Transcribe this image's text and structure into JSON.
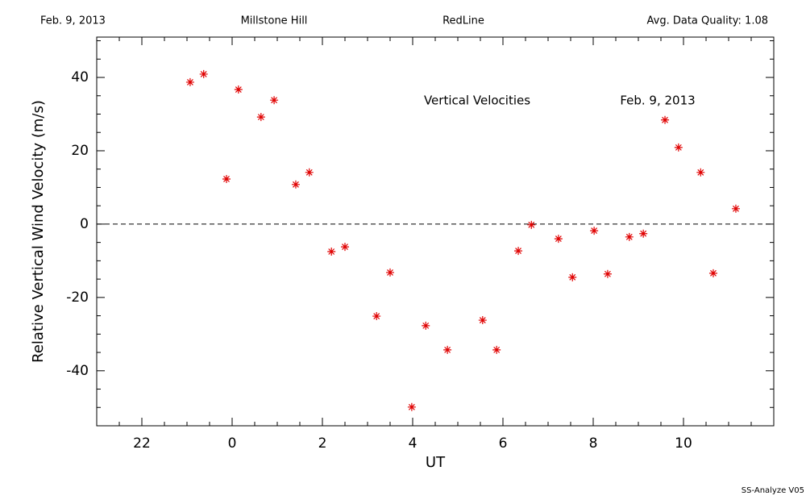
{
  "chart_data": {
    "type": "scatter",
    "header": [
      "Feb. 9, 2013",
      "Millstone Hill",
      "RedLine",
      "Avg. Data Quality: 1.08"
    ],
    "annotations": [
      "Vertical Velocities",
      "Feb. 9, 2013"
    ],
    "footer": "SS-Analyze V05",
    "xlabel": "UT",
    "ylabel": "Relative Vertical Wind Velocity (m/s)",
    "xlim": [
      -3,
      12
    ],
    "ylim": [
      -55,
      51
    ],
    "xticks": [
      {
        "value": -2,
        "label": "22"
      },
      0,
      2,
      4,
      6,
      8,
      10
    ],
    "yticks": [
      -40,
      -20,
      0,
      20,
      40
    ],
    "xminorticks": [
      -2.5,
      -1.5,
      -1,
      -0.5,
      0.5,
      1,
      1.5,
      2.5,
      3,
      3.5,
      4.5,
      5,
      5.5,
      6.5,
      7,
      7.5,
      8.5,
      9,
      9.5,
      10.5,
      11,
      11.5
    ],
    "yminorticks": [
      -50,
      -45,
      -35,
      -30,
      -25,
      -15,
      -10,
      -5,
      5,
      10,
      15,
      25,
      30,
      35,
      45,
      50
    ],
    "hline": 0,
    "color": "#e00000",
    "x": [
      -0.93,
      -0.63,
      -0.125,
      0.14,
      0.64,
      0.93,
      1.41,
      1.71,
      2.2,
      2.5,
      3.2,
      3.5,
      3.98,
      4.29,
      4.77,
      5.55,
      5.86,
      6.34,
      6.63,
      7.23,
      7.54,
      8.02,
      8.32,
      8.8,
      9.11,
      9.59,
      9.89,
      10.38,
      10.66,
      11.16
    ],
    "values": [
      38.7,
      40.9,
      12.3,
      36.7,
      29.2,
      33.8,
      10.8,
      14.1,
      -7.5,
      -6.2,
      -25.1,
      -13.2,
      -49.9,
      -27.7,
      -34.3,
      -26.2,
      -34.3,
      -7.3,
      -0.2,
      -4.0,
      -14.5,
      -1.8,
      -13.6,
      -3.5,
      -2.6,
      28.4,
      20.9,
      14.1,
      -13.4,
      4.2
    ]
  }
}
